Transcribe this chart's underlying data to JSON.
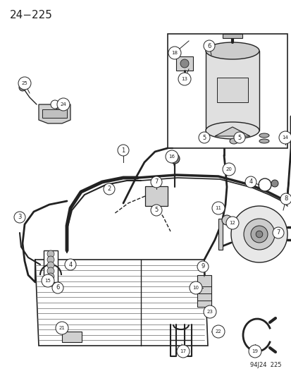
{
  "page_number": "24−225",
  "footer_text": "94J24  225",
  "background_color": "#ffffff",
  "line_color": "#222222",
  "fig_width": 4.14,
  "fig_height": 5.33,
  "dpi": 100
}
